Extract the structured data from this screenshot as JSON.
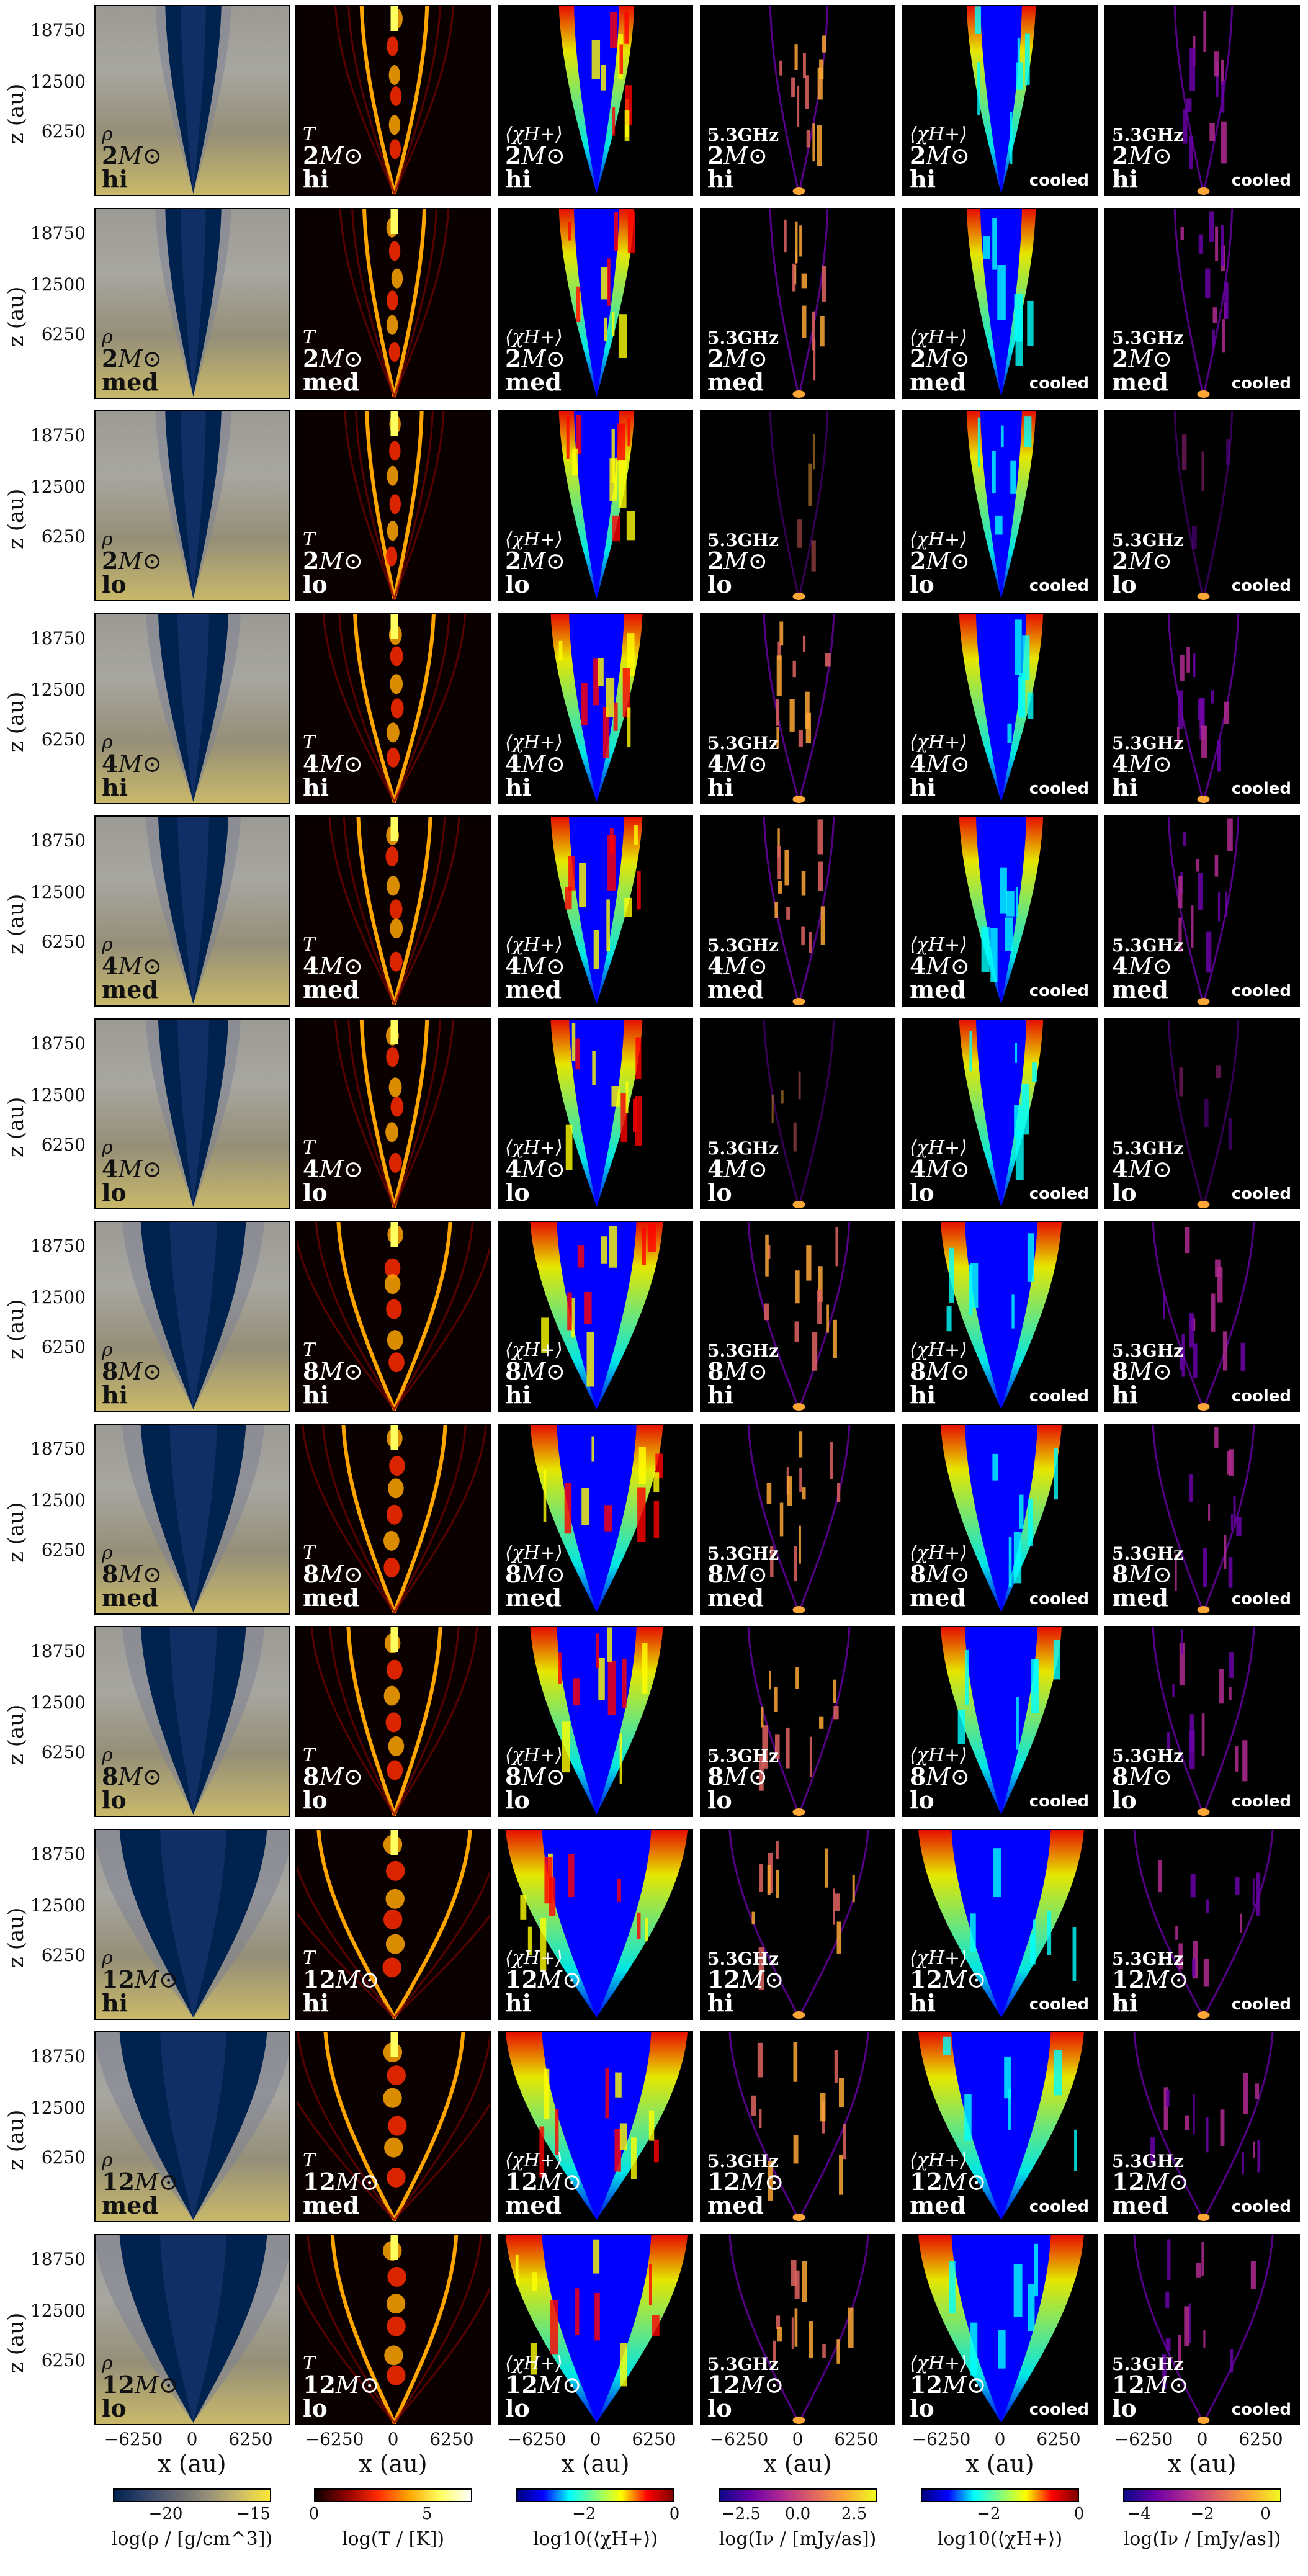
{
  "axis": {
    "y_label": "z (au)",
    "y_ticks": [
      "18750",
      "12500",
      "6250"
    ],
    "x_label": "x (au)",
    "x_ticks": [
      "−6250",
      "0",
      "6250"
    ]
  },
  "columns": [
    {
      "id": "rho",
      "label_top": "ρ",
      "freq": "",
      "cooled": false,
      "cmap": "cividis"
    },
    {
      "id": "T",
      "label_top": "T",
      "freq": "",
      "cooled": false,
      "cmap": "hot"
    },
    {
      "id": "chi",
      "label_top": "⟨χH+⟩",
      "freq": "",
      "cooled": false,
      "cmap": "jet"
    },
    {
      "id": "I",
      "label_top": "5.3GHz",
      "freq": "5.3GHz",
      "cooled": false,
      "cmap": "plasma"
    },
    {
      "id": "chi_cooled",
      "label_top": "⟨χH+⟩",
      "freq": "",
      "cooled": true,
      "cmap": "jet"
    },
    {
      "id": "I_cooled",
      "label_top": "5.3GHz",
      "freq": "5.3GHz",
      "cooled": true,
      "cmap": "plasma"
    }
  ],
  "cooled_tag": "cooled",
  "rows": [
    {
      "mass": "2",
      "unit": "M⊙",
      "res": "hi"
    },
    {
      "mass": "2",
      "unit": "M⊙",
      "res": "med"
    },
    {
      "mass": "2",
      "unit": "M⊙",
      "res": "lo"
    },
    {
      "mass": "4",
      "unit": "M⊙",
      "res": "hi"
    },
    {
      "mass": "4",
      "unit": "M⊙",
      "res": "med"
    },
    {
      "mass": "4",
      "unit": "M⊙",
      "res": "lo"
    },
    {
      "mass": "8",
      "unit": "M⊙",
      "res": "hi"
    },
    {
      "mass": "8",
      "unit": "M⊙",
      "res": "med"
    },
    {
      "mass": "8",
      "unit": "M⊙",
      "res": "lo"
    },
    {
      "mass": "12",
      "unit": "M⊙",
      "res": "hi"
    },
    {
      "mass": "12",
      "unit": "M⊙",
      "res": "med"
    },
    {
      "mass": "12",
      "unit": "M⊙",
      "res": "lo"
    }
  ],
  "colorbars": [
    {
      "label": "log(ρ / [g/cm^3])",
      "ticks": [
        "−20",
        "−15"
      ],
      "range": [
        -23,
        -14
      ],
      "cmap": "cividis",
      "extend": false
    },
    {
      "label": "log(T / [K])",
      "ticks": [
        "0",
        "5"
      ],
      "range": [
        0,
        7
      ],
      "cmap": "hot",
      "extend": false
    },
    {
      "label": "log10(⟨χH+⟩)",
      "ticks": [
        "−2",
        "0"
      ],
      "range": [
        -3.5,
        0
      ],
      "cmap": "jet",
      "extend": true
    },
    {
      "label": "log(Iν / [mJy/as])",
      "ticks": [
        "−2.5",
        "0.0",
        "2.5"
      ],
      "range": [
        -3.5,
        3.5
      ],
      "cmap": "plasma",
      "extend": false
    },
    {
      "label": "log10(⟨χH+⟩)",
      "ticks": [
        "−2",
        "0"
      ],
      "range": [
        -3.5,
        0
      ],
      "cmap": "jet",
      "extend": true
    },
    {
      "label": "log(Iν / [mJy/as])",
      "ticks": [
        "−4",
        "−2",
        "0"
      ],
      "range": [
        -4.5,
        0.5
      ],
      "cmap": "plasma",
      "extend": false
    }
  ],
  "colors": {
    "cividis": [
      "#00224e",
      "#35456c",
      "#666970",
      "#958f78",
      "#cbba69",
      "#fee838"
    ],
    "hot": [
      "#0b0000",
      "#8e0000",
      "#ff2a00",
      "#ffa500",
      "#ffff60",
      "#ffffff"
    ],
    "jet": [
      "#00007f",
      "#0000ff",
      "#00ffff",
      "#7fff7f",
      "#ffff00",
      "#ff0000",
      "#7f0000"
    ],
    "plasma": [
      "#0d0887",
      "#6a00a8",
      "#b12a90",
      "#e16462",
      "#fca636",
      "#f0f921"
    ]
  }
}
